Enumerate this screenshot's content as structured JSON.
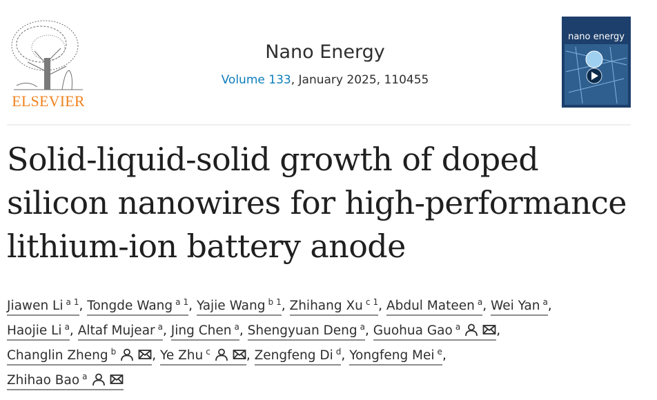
{
  "header": {
    "publisher": "ELSEVIER",
    "journal": "Nano Energy",
    "volume": "Volume 133",
    "issue_info": ", January 2025, 110455",
    "cover_title": "nano energy"
  },
  "article": {
    "title": "Solid-liquid-solid growth of doped silicon nanowires for high-performance lithium-ion battery anode",
    "separator": ",",
    "author_lines": [
      [
        {
          "name": "Jiawen Li",
          "sups": [
            "a",
            "1"
          ],
          "contact": false
        },
        {
          "name": "Tongde Wang",
          "sups": [
            "a",
            "1"
          ],
          "contact": false
        },
        {
          "name": "Yajie Wang",
          "sups": [
            "b",
            "1"
          ],
          "contact": false
        },
        {
          "name": "Zhihang Xu",
          "sups": [
            "c",
            "1"
          ],
          "contact": false
        },
        {
          "name": "Abdul Mateen",
          "sups": [
            "a"
          ],
          "contact": false
        },
        {
          "name": "Wei Yan",
          "sups": [
            "a"
          ],
          "contact": false
        }
      ],
      [
        {
          "name": "Haojie Li",
          "sups": [
            "a"
          ],
          "contact": false
        },
        {
          "name": "Altaf Mujear",
          "sups": [
            "a"
          ],
          "contact": false
        },
        {
          "name": "Jing Chen",
          "sups": [
            "a"
          ],
          "contact": false
        },
        {
          "name": "Shengyuan Deng",
          "sups": [
            "a"
          ],
          "contact": false
        },
        {
          "name": "Guohua Gao",
          "sups": [
            "a"
          ],
          "contact": true
        }
      ],
      [
        {
          "name": "Changlin Zheng",
          "sups": [
            "b"
          ],
          "contact": true
        },
        {
          "name": "Ye Zhu",
          "sups": [
            "c"
          ],
          "contact": true
        },
        {
          "name": "Zengfeng Di",
          "sups": [
            "d"
          ],
          "contact": false
        },
        {
          "name": "Yongfeng Mei",
          "sups": [
            "e"
          ],
          "contact": false
        }
      ],
      [
        {
          "name": "Zhihao Bao",
          "sups": [
            "a"
          ],
          "contact": true
        }
      ]
    ]
  }
}
